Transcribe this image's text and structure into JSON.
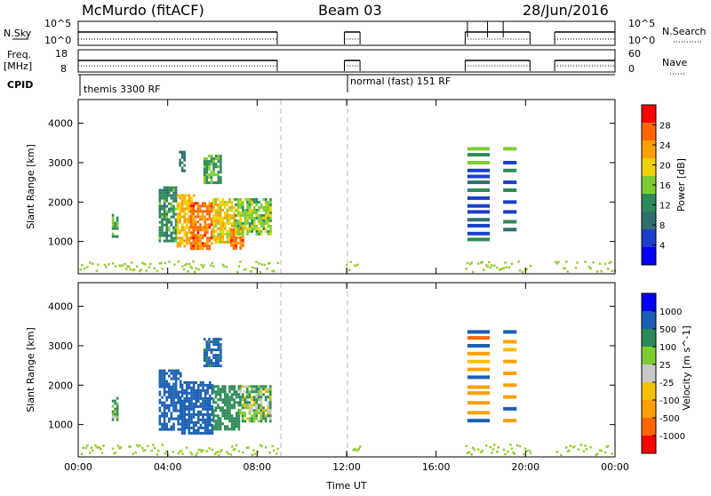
{
  "header": {
    "title": "McMurdo (fitACF)",
    "beam": "Beam 03",
    "date": "28/Jun/2016"
  },
  "top_panels": {
    "nsky_label": "N.Sky",
    "nsky_ticks": [
      "10^5",
      "10^0"
    ],
    "nsearch_label": "N.Search",
    "freq_label_1": "Freq.",
    "freq_label_2": "[MHz]",
    "freq_ticks": [
      "18",
      "8"
    ],
    "nave_label": "Nave",
    "nave_ticks": [
      "60",
      "0"
    ],
    "cpid_label": "CPID",
    "cpid_modes": [
      "themis 3300 RF",
      "normal (fast) 151 RF"
    ]
  },
  "colors": {
    "power": [
      "#0000ff",
      "#1a3fcc",
      "#2f6f6f",
      "#2e8b57",
      "#7ccd32",
      "#f0d000",
      "#ffa000",
      "#ff6600",
      "#ff0000"
    ],
    "velocity": [
      "#ff0000",
      "#ff6600",
      "#ffa000",
      "#f5c000",
      "#c8c8c8",
      "#7ccd32",
      "#2e8b57",
      "#1a5fb4",
      "#0000ff"
    ],
    "ground": "#9acd32"
  },
  "chart_data": [
    {
      "type": "heatmap",
      "name": "power",
      "xlabel": "",
      "ylabel": "Slant Range [km]",
      "x_ticks": [
        "00:00",
        "04:00",
        "08:00",
        "12:00",
        "16:00",
        "20:00",
        "00:00"
      ],
      "y_ticks": [
        "1000",
        "2000",
        "3000",
        "4000"
      ],
      "xlim": [
        0,
        24
      ],
      "ylim": [
        180,
        4600
      ],
      "colorbar": {
        "label": "Power [dB]",
        "ticks": [
          "4",
          "8",
          "12",
          "16",
          "20",
          "24",
          "28"
        ],
        "range": [
          0,
          32
        ]
      },
      "regions": [
        {
          "t": [
            1.5,
            1.8
          ],
          "r": [
            1100,
            1700
          ],
          "value": 14
        },
        {
          "t": [
            3.6,
            4.4
          ],
          "r": [
            1000,
            2400
          ],
          "value": 12
        },
        {
          "t": [
            4.4,
            5.2
          ],
          "r": [
            900,
            2200
          ],
          "value": 22
        },
        {
          "t": [
            5.0,
            6.0
          ],
          "r": [
            800,
            2000
          ],
          "value": 26
        },
        {
          "t": [
            6.0,
            7.0
          ],
          "r": [
            1000,
            2100
          ],
          "value": 20
        },
        {
          "t": [
            6.8,
            7.4
          ],
          "r": [
            800,
            1400
          ],
          "value": 26
        },
        {
          "t": [
            7.0,
            8.6
          ],
          "r": [
            1200,
            2100
          ],
          "value": 16
        },
        {
          "t": [
            5.6,
            6.4
          ],
          "r": [
            2500,
            3200
          ],
          "value": 14
        },
        {
          "t": [
            4.5,
            4.8
          ],
          "r": [
            2800,
            3300
          ],
          "value": 10
        }
      ],
      "stripes": [
        {
          "t": [
            17.4,
            18.4
          ],
          "r": 3350,
          "value": 16
        },
        {
          "t": [
            17.4,
            18.4
          ],
          "r": 3200,
          "value": 14
        },
        {
          "t": [
            17.4,
            18.4
          ],
          "r": 3000,
          "value": 16
        },
        {
          "t": [
            17.4,
            18.4
          ],
          "r": 2800,
          "value": 4
        },
        {
          "t": [
            17.4,
            18.4
          ],
          "r": 2650,
          "value": 6
        },
        {
          "t": [
            17.4,
            18.4
          ],
          "r": 2500,
          "value": 8
        },
        {
          "t": [
            17.4,
            18.4
          ],
          "r": 2300,
          "value": 12
        },
        {
          "t": [
            17.4,
            18.4
          ],
          "r": 2100,
          "value": 6
        },
        {
          "t": [
            17.4,
            18.4
          ],
          "r": 1900,
          "value": 4
        },
        {
          "t": [
            17.4,
            18.4
          ],
          "r": 1750,
          "value": 6
        },
        {
          "t": [
            17.4,
            18.4
          ],
          "r": 1550,
          "value": 10
        },
        {
          "t": [
            17.4,
            18.4
          ],
          "r": 1400,
          "value": 4
        },
        {
          "t": [
            17.4,
            18.4
          ],
          "r": 1200,
          "value": 6
        },
        {
          "t": [
            17.4,
            18.4
          ],
          "r": 1050,
          "value": 12
        },
        {
          "t": [
            19.0,
            19.6
          ],
          "r": 3350,
          "value": 16
        },
        {
          "t": [
            19.0,
            19.6
          ],
          "r": 3000,
          "value": 6
        },
        {
          "t": [
            19.0,
            19.6
          ],
          "r": 2800,
          "value": 12
        },
        {
          "t": [
            19.0,
            19.6
          ],
          "r": 2500,
          "value": 6
        },
        {
          "t": [
            19.0,
            19.6
          ],
          "r": 2300,
          "value": 14
        },
        {
          "t": [
            19.0,
            19.6
          ],
          "r": 2000,
          "value": 4
        },
        {
          "t": [
            19.0,
            19.6
          ],
          "r": 1750,
          "value": 6
        },
        {
          "t": [
            19.0,
            19.6
          ],
          "r": 1500,
          "value": 14
        },
        {
          "t": [
            19.0,
            19.6
          ],
          "r": 1300,
          "value": 8
        }
      ]
    },
    {
      "type": "heatmap",
      "name": "velocity",
      "xlabel": "Time UT",
      "ylabel": "Slant Range [km]",
      "x_ticks": [
        "00:00",
        "04:00",
        "08:00",
        "12:00",
        "16:00",
        "20:00",
        "00:00"
      ],
      "y_ticks": [
        "1000",
        "2000",
        "3000",
        "4000"
      ],
      "xlim": [
        0,
        24
      ],
      "ylim": [
        180,
        4600
      ],
      "colorbar": {
        "label": "Velocity [m s^-1]",
        "ticks": [
          "-1000",
          "-500",
          "-100",
          "-25",
          "25",
          "100",
          "500",
          "1000"
        ]
      },
      "regions": [
        {
          "t": [
            1.5,
            1.8
          ],
          "r": [
            1100,
            1700
          ],
          "value": 100
        },
        {
          "t": [
            3.6,
            4.6
          ],
          "r": [
            900,
            2400
          ],
          "value": 800
        },
        {
          "t": [
            4.6,
            6.0
          ],
          "r": [
            800,
            2100
          ],
          "value": 700
        },
        {
          "t": [
            6.0,
            7.2
          ],
          "r": [
            900,
            2000
          ],
          "value": 300
        },
        {
          "t": [
            7.2,
            8.6
          ],
          "r": [
            1100,
            2000
          ],
          "value": 80
        },
        {
          "t": [
            5.6,
            6.4
          ],
          "r": [
            2500,
            3200
          ],
          "value": 600
        }
      ],
      "stripes": [
        {
          "t": [
            17.4,
            18.4
          ],
          "r": 3350,
          "value": 800
        },
        {
          "t": [
            17.4,
            18.4
          ],
          "r": 3200,
          "value": -500
        },
        {
          "t": [
            17.4,
            18.4
          ],
          "r": 3000,
          "value": 800
        },
        {
          "t": [
            17.4,
            18.4
          ],
          "r": 2800,
          "value": -100
        },
        {
          "t": [
            17.4,
            18.4
          ],
          "r": 2600,
          "value": -25
        },
        {
          "t": [
            17.4,
            18.4
          ],
          "r": 2400,
          "value": -100
        },
        {
          "t": [
            17.4,
            18.4
          ],
          "r": 2200,
          "value": 800
        },
        {
          "t": [
            17.4,
            18.4
          ],
          "r": 1950,
          "value": -100
        },
        {
          "t": [
            17.4,
            18.4
          ],
          "r": 1800,
          "value": -100
        },
        {
          "t": [
            17.4,
            18.4
          ],
          "r": 1550,
          "value": -100
        },
        {
          "t": [
            17.4,
            18.4
          ],
          "r": 1300,
          "value": -100
        },
        {
          "t": [
            17.4,
            18.4
          ],
          "r": 1100,
          "value": 800
        },
        {
          "t": [
            19.0,
            19.6
          ],
          "r": 3350,
          "value": 800
        },
        {
          "t": [
            19.0,
            19.6
          ],
          "r": 3100,
          "value": -100
        },
        {
          "t": [
            19.0,
            19.6
          ],
          "r": 2900,
          "value": -25
        },
        {
          "t": [
            19.0,
            19.6
          ],
          "r": 2600,
          "value": -100
        },
        {
          "t": [
            19.0,
            19.6
          ],
          "r": 2300,
          "value": -100
        },
        {
          "t": [
            19.0,
            19.6
          ],
          "r": 2000,
          "value": -100
        },
        {
          "t": [
            19.0,
            19.6
          ],
          "r": 1700,
          "value": -100
        },
        {
          "t": [
            19.0,
            19.6
          ],
          "r": 1400,
          "value": 800
        },
        {
          "t": [
            19.0,
            19.6
          ],
          "r": 1100,
          "value": -100
        }
      ]
    }
  ],
  "operating_periods": [
    [
      0,
      8.9
    ],
    [
      11.9,
      12.6
    ],
    [
      17.3,
      20.2
    ],
    [
      21.3,
      24
    ]
  ]
}
